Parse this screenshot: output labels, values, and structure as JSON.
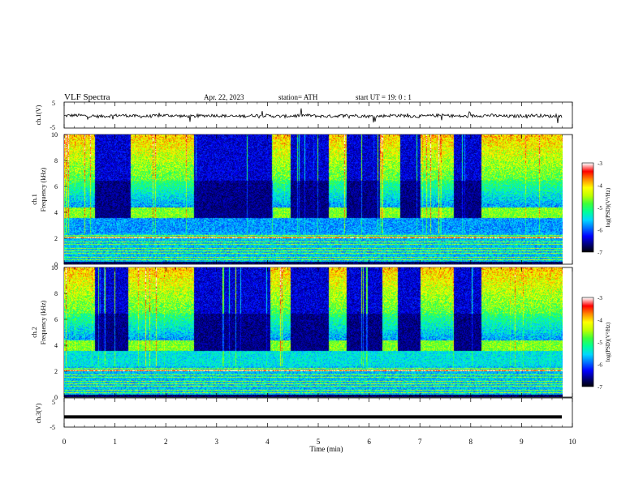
{
  "header": {
    "title": "VLF  Spectra",
    "date": "Apr. 22, 2023",
    "station": "station= ATH",
    "start": "start  UT  =    19: 0   : 1"
  },
  "chart_data": [
    {
      "type": "line",
      "panel": "ch1-waveform",
      "ylabel": "ch.1(V)",
      "ylim": [
        -5,
        5
      ],
      "yticks": [
        "5",
        "-5"
      ],
      "xlim": [
        0,
        10
      ],
      "series_color": "#000000",
      "level": -0.3
    },
    {
      "type": "heatmap",
      "panel": "ch1-spectrogram",
      "ylabel_top": "ch.1",
      "ylabel": "Frequency  (kHz)",
      "ylim": [
        0,
        10
      ],
      "yticks": [
        "0",
        "2",
        "4",
        "6",
        "8",
        "10"
      ],
      "xlim": [
        0,
        9.8
      ],
      "dark_intervals_min": [
        [
          0.6,
          1.3
        ],
        [
          2.55,
          4.1
        ],
        [
          4.45,
          5.2
        ],
        [
          5.55,
          6.2
        ],
        [
          6.6,
          7.0
        ],
        [
          7.65,
          8.2
        ]
      ],
      "colorbar": {
        "label": "log(PSD)(V²/Hz)",
        "ticks": [
          "-3",
          "-4",
          "-5",
          "-6",
          "-7"
        ],
        "range": [
          -7,
          -3
        ]
      }
    },
    {
      "type": "heatmap",
      "panel": "ch2-spectrogram",
      "ylabel_top": "ch.2",
      "ylabel": "Frequency  (kHz)",
      "ylim": [
        0,
        10
      ],
      "yticks": [
        "0",
        "2",
        "4",
        "6",
        "8",
        "10"
      ],
      "xlim": [
        0,
        9.8
      ],
      "dark_intervals_min": [
        [
          0.6,
          1.25
        ],
        [
          2.55,
          4.05
        ],
        [
          4.45,
          5.2
        ],
        [
          5.55,
          6.25
        ],
        [
          6.55,
          7.0
        ],
        [
          7.65,
          8.2
        ]
      ],
      "colorbar": {
        "label": "log(PSD)(V²/Hz)",
        "ticks": [
          "-3",
          "-4",
          "-5",
          "-6",
          "-7"
        ],
        "range": [
          -7,
          -3
        ]
      }
    },
    {
      "type": "line",
      "panel": "ch3-waveform",
      "ylabel": "ch.3(V)",
      "ylim": [
        -5,
        5
      ],
      "yticks": [
        "5",
        "-5"
      ],
      "xlim": [
        0,
        10
      ],
      "series_color": "#000000",
      "level": -1.5
    }
  ],
  "x_axis": {
    "label": "Time  (min)",
    "ticks": [
      "0",
      "1",
      "2",
      "3",
      "4",
      "5",
      "6",
      "7",
      "8",
      "9",
      "10"
    ],
    "xlim": [
      0,
      10
    ]
  },
  "colormap": [
    "#000000",
    "#00007a",
    "#0000ff",
    "#0070ff",
    "#00d8ff",
    "#00ff9a",
    "#3cff3c",
    "#bfff00",
    "#ffff00",
    "#ff8c00",
    "#ff0000",
    "#ffffff"
  ]
}
